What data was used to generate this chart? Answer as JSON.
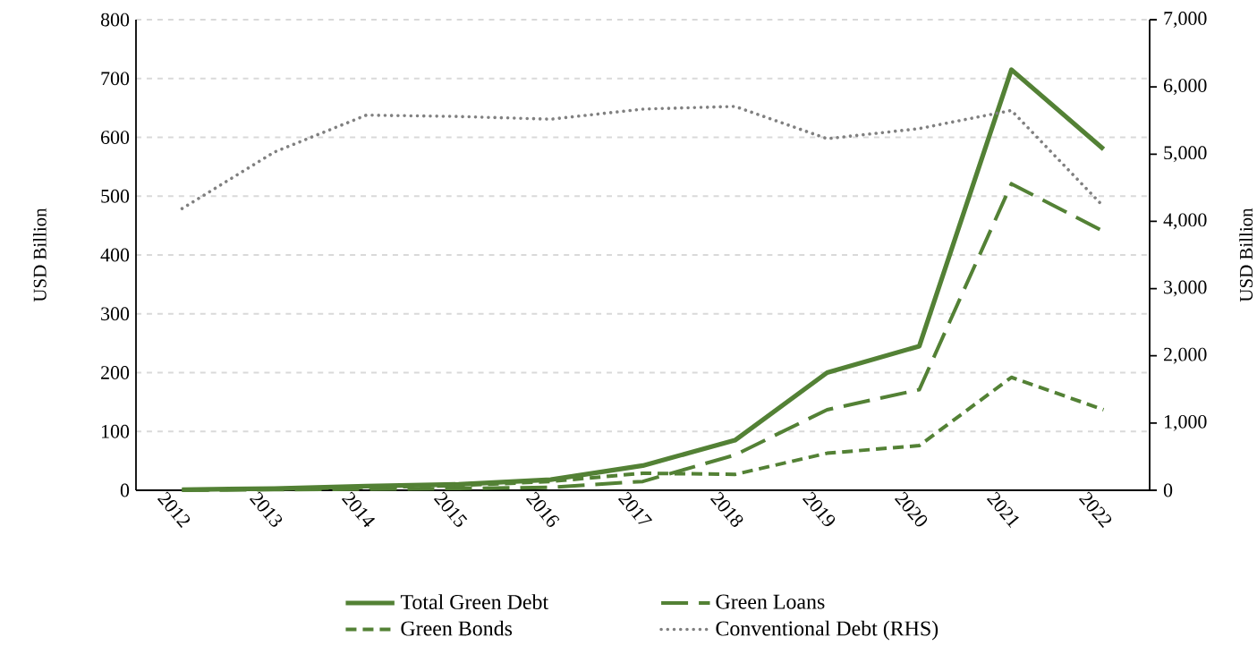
{
  "chart_data": {
    "type": "line",
    "ylabel": "USD Billion",
    "y2label": "USD Billion",
    "categories": [
      "2012",
      "2013",
      "2014",
      "2015",
      "2016",
      "2017",
      "2018",
      "2019",
      "2020",
      "2021",
      "2022"
    ],
    "series": [
      {
        "name": "Total Green Debt",
        "color": "#538135",
        "line_style": "solid",
        "values": [
          1,
          3,
          7,
          10,
          18,
          42,
          85,
          200,
          245,
          715,
          580
        ]
      },
      {
        "name": "Green Loans",
        "color": "#538135",
        "line_style": "long dashed",
        "values": [
          0,
          1,
          2,
          3,
          5,
          15,
          60,
          137,
          171,
          521,
          440
        ]
      },
      {
        "name": "Green Bonds",
        "color": "#538135",
        "line_style": "dashed",
        "values": [
          1,
          2,
          5,
          8,
          15,
          29,
          27,
          63,
          76,
          192,
          137
        ]
      },
      {
        "name": "Conventional Debt (RHS)",
        "color": "#808080",
        "line_style": "dotted",
        "axis": "y2",
        "values": [
          4190,
          5030,
          5580,
          5560,
          5520,
          5670,
          5710,
          5230,
          5380,
          5650,
          4220
        ]
      }
    ],
    "ylim": [
      0,
      800
    ],
    "yticks": [
      0,
      100,
      200,
      300,
      400,
      500,
      600,
      700,
      800
    ],
    "y2lim": [
      0,
      7000
    ],
    "y2ticks": [
      {
        "value": 0,
        "label": "0"
      },
      {
        "value": 1000,
        "label": "1,000"
      },
      {
        "value": 2000,
        "label": "2,000"
      },
      {
        "value": 3000,
        "label": "3,000"
      },
      {
        "value": 4000,
        "label": "4,000"
      },
      {
        "value": 5000,
        "label": "5,000"
      },
      {
        "value": 6000,
        "label": "6,000"
      },
      {
        "value": 7000,
        "label": "7,000"
      }
    ],
    "grid": "y",
    "legend": "bottom"
  }
}
